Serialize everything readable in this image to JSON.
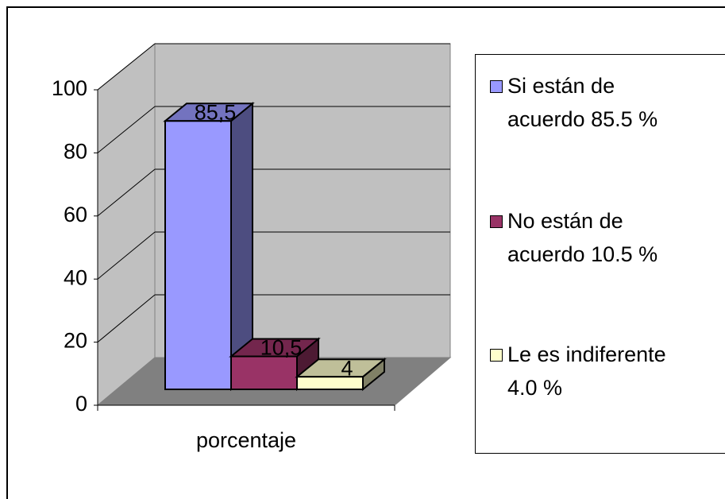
{
  "chart_data": {
    "type": "bar3d",
    "categories": [
      "porcentaje"
    ],
    "series": [
      {
        "name": "Si están de acuerdo 85.5 %",
        "color": "#9999ff",
        "values": [
          85.5
        ],
        "value_labels": [
          "85,5"
        ]
      },
      {
        "name": "No están de acuerdo 10.5 %",
        "color": "#993366",
        "values": [
          10.5
        ],
        "value_labels": [
          "10,5"
        ]
      },
      {
        "name": "Le es indiferente 4.0 %",
        "color": "#ffffcc",
        "values": [
          4
        ],
        "value_labels": [
          "4"
        ]
      }
    ],
    "ylim": [
      0,
      100
    ],
    "yticks": [
      0,
      20,
      40,
      60,
      80,
      100
    ],
    "grid": true,
    "legend": "right"
  }
}
